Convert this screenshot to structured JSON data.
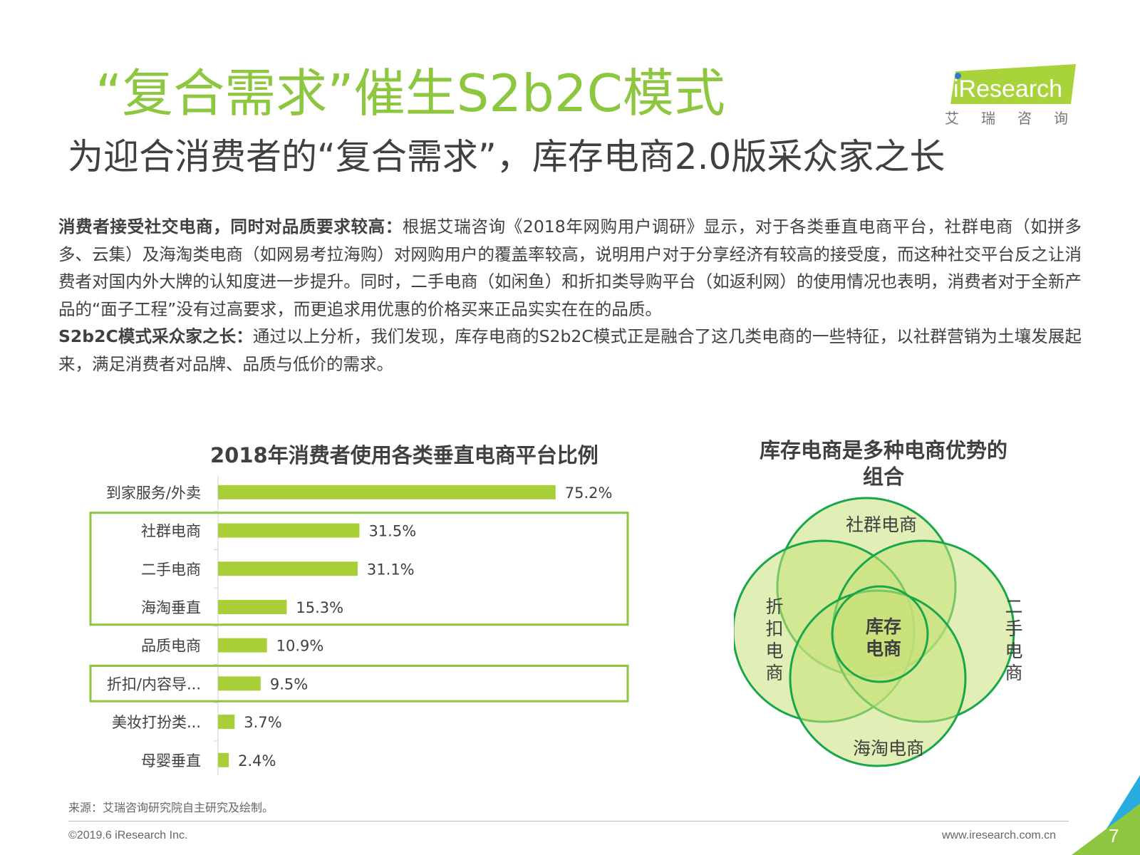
{
  "header": {
    "title": "“复合需求”催生S2b2C模式",
    "subtitle": "为迎合消费者的“复合需求”，库存电商2.0版采众家之长"
  },
  "logo": {
    "text": "iResearch",
    "cn": "艾瑞咨询",
    "accent_color": "#a9d33a",
    "dot_color": "#2f7bd1"
  },
  "body": {
    "p1_lead": "消费者接受社交电商，同时对品质要求较高：",
    "p1_text": "根据艾瑞咨询《2018年网购用户调研》显示，对于各类垂直电商平台，社群电商（如拼多多、云集）及海淘类电商（如网易考拉海购）对网购用户的覆盖率较高，说明用户对于分享经济有较高的接受度，而这种社交平台反之让消费者对国内外大牌的认知度进一步提升。同时，二手电商（如闲鱼）和折扣类导购平台（如返利网）的使用情况也表明，消费者对于全新产品的“面子工程”没有过高要求，而更追求用优惠的价格买来正品实实在在的品质。",
    "p2_lead": "S2b2C模式采众家之长：",
    "p2_text": "通过以上分析，我们发现，库存电商的S2b2C模式正是融合了这几类电商的一些特征，以社群营销为土壤发展起来，满足消费者对品牌、品质与低价的需求。"
  },
  "chart_data": {
    "type": "bar",
    "orientation": "horizontal",
    "title": "2018年消费者使用各类垂直电商平台比例",
    "categories": [
      "到家服务/外卖",
      "社群电商",
      "二手电商",
      "海淘垂直",
      "品质电商",
      "折扣/内容导...",
      "美妆打扮类...",
      "母婴垂直"
    ],
    "values": [
      75.2,
      31.5,
      31.1,
      15.3,
      10.9,
      9.5,
      3.7,
      2.4
    ],
    "labels": [
      "75.2%",
      "31.5%",
      "31.1%",
      "15.3%",
      "10.9%",
      "9.5%",
      "3.7%",
      "2.4%"
    ],
    "unit": "%",
    "xlim": [
      0,
      100
    ],
    "bar_color": "#a9cf38",
    "highlight_color": "#8dc63f",
    "highlight_groups": [
      [
        "社群电商",
        "二手电商",
        "海淘垂直"
      ],
      [
        "折扣/内容导..."
      ]
    ],
    "grid": false
  },
  "venn": {
    "title": "库存电商是多种电商优势的组合",
    "top": "社群电商",
    "left": "折扣电商",
    "right": "二手电商",
    "bottom": "海淘电商",
    "center": "库存电商",
    "stroke_color": "#1aa64a",
    "fill_color": "#c8e27a"
  },
  "footer": {
    "source": "来源：艾瑞咨询研究院自主研究及绘制。",
    "copyright": "©2019.6 iResearch Inc.",
    "website": "www.iresearch.com.cn",
    "page": "7"
  }
}
